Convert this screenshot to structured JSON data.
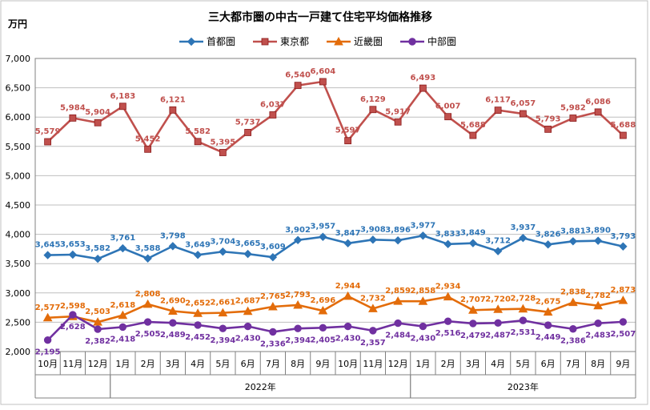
{
  "chart_data": {
    "type": "line",
    "title": "三大都市圏の中古一戸建て住宅平均価格推移",
    "ylabel": "万円",
    "xlabel": "",
    "ylim": [
      2000,
      7000
    ],
    "y_ticks": [
      "2,000",
      "2,500",
      "3,000",
      "3,500",
      "4,000",
      "4,500",
      "5,000",
      "5,500",
      "6,000",
      "6,500",
      "7,000"
    ],
    "y_tick_values": [
      2000,
      2500,
      3000,
      3500,
      4000,
      4500,
      5000,
      5500,
      6000,
      6500,
      7000
    ],
    "grid": true,
    "legend_position": "top",
    "categories": [
      "10月",
      "11月",
      "12月",
      "1月",
      "2月",
      "3月",
      "4月",
      "5月",
      "6月",
      "7月",
      "8月",
      "9月",
      "10月",
      "11月",
      "12月",
      "1月",
      "2月",
      "3月",
      "4月",
      "5月",
      "6月",
      "7月",
      "8月",
      "9月"
    ],
    "year_groups": [
      {
        "label": "",
        "start": 0,
        "end": 2
      },
      {
        "label": "2022年",
        "start": 3,
        "end": 14
      },
      {
        "label": "2023年",
        "start": 15,
        "end": 23
      }
    ],
    "series": [
      {
        "name": "首都圏",
        "color": "#2E75B6",
        "marker": "diamond",
        "label_pos": "above",
        "values": [
          3645,
          3653,
          3582,
          3761,
          3588,
          3798,
          3649,
          3704,
          3665,
          3609,
          3902,
          3957,
          3847,
          3908,
          3896,
          3977,
          3833,
          3849,
          3712,
          3937,
          3826,
          3881,
          3890,
          3793
        ],
        "labels": [
          "3,645",
          "3,653",
          "3,582",
          "3,761",
          "3,588",
          "3,798",
          "3,649",
          "3,704",
          "3,665",
          "3,609",
          "3,902",
          "3,957",
          "3,847",
          "3,908",
          "3,896",
          "3,977",
          "3,833",
          "3,849",
          "3,712",
          "3,937",
          "3,826",
          "3,881",
          "3,890",
          "3,793"
        ]
      },
      {
        "name": "東京都",
        "color": "#C0504D",
        "marker": "square",
        "label_pos": "above",
        "values": [
          5579,
          5984,
          5904,
          6183,
          5452,
          6121,
          5582,
          5395,
          5737,
          6037,
          6540,
          6604,
          5597,
          6129,
          5917,
          6493,
          6007,
          5688,
          6117,
          6057,
          5793,
          5982,
          6086,
          5688
        ],
        "labels": [
          "5,579",
          "5,984",
          "5,904",
          "6,183",
          "5,452",
          "6,121",
          "5,582",
          "5,395",
          "5,737",
          "6,037",
          "6,540",
          "6,604",
          "5,597",
          "6,129",
          "5,917",
          "6,493",
          "6,007",
          "5,688",
          "6,117",
          "6,057",
          "5,793",
          "5,982",
          "6,086",
          "5,688"
        ]
      },
      {
        "name": "近畿圏",
        "color": "#E36C0A",
        "marker": "triangle",
        "label_pos": "above",
        "values": [
          2577,
          2598,
          2503,
          2618,
          2808,
          2690,
          2652,
          2661,
          2687,
          2765,
          2793,
          2696,
          2944,
          2732,
          2859,
          2858,
          2934,
          2707,
          2720,
          2728,
          2675,
          2838,
          2782,
          2873
        ],
        "labels": [
          "2,577",
          "2,598",
          "2,503",
          "2,618",
          "2,808",
          "2,690",
          "2,652",
          "2,661",
          "2,687",
          "2,765",
          "2,793",
          "2,696",
          "2,944",
          "2,732",
          "2,859",
          "2,858",
          "2,934",
          "2,707",
          "2,720",
          "2,728",
          "2,675",
          "2,838",
          "2,782",
          "2,873"
        ]
      },
      {
        "name": "中部圏",
        "color": "#7030A0",
        "marker": "circle",
        "label_pos": "below",
        "values": [
          2195,
          2628,
          2382,
          2418,
          2505,
          2489,
          2452,
          2394,
          2430,
          2336,
          2394,
          2405,
          2430,
          2357,
          2484,
          2430,
          2516,
          2479,
          2487,
          2531,
          2449,
          2386,
          2483,
          2507
        ],
        "labels": [
          "2,195",
          "2,628",
          "2,382",
          "2,418",
          "2,505",
          "2,489",
          "2,452",
          "2,394",
          "2,430",
          "2,336",
          "2,394",
          "2,405",
          "2,430",
          "2,357",
          "2,484",
          "2,430",
          "2,516",
          "2,479",
          "2,487",
          "2,531",
          "2,449",
          "2,386",
          "2,483",
          "2,507"
        ]
      }
    ]
  }
}
